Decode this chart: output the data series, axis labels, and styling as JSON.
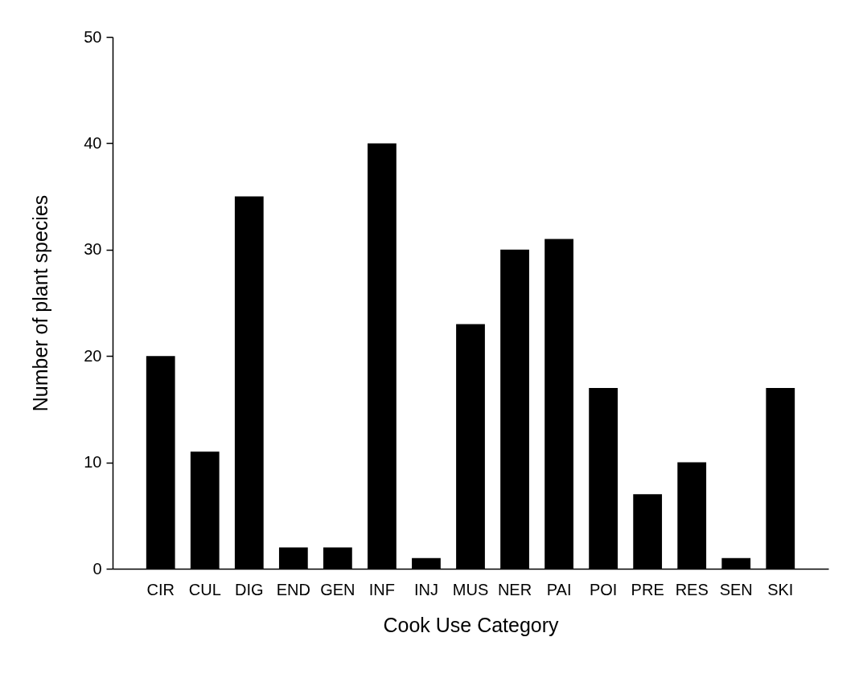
{
  "chart_data": {
    "type": "bar",
    "xlabel": "Cook Use Category",
    "ylabel": "Number of plant species",
    "categories": [
      "CIR",
      "CUL",
      "DIG",
      "END",
      "GEN",
      "INF",
      "INJ",
      "MUS",
      "NER",
      "PAI",
      "POI",
      "PRE",
      "RES",
      "SEN",
      "SKI"
    ],
    "values": [
      20,
      11,
      35,
      2,
      2,
      40,
      1,
      23,
      30,
      31,
      17,
      7,
      10,
      1,
      17
    ],
    "color": "#000000",
    "ylim": [
      0,
      50
    ],
    "yticks": [
      0,
      10,
      20,
      30,
      40,
      50
    ],
    "grid": false
  }
}
